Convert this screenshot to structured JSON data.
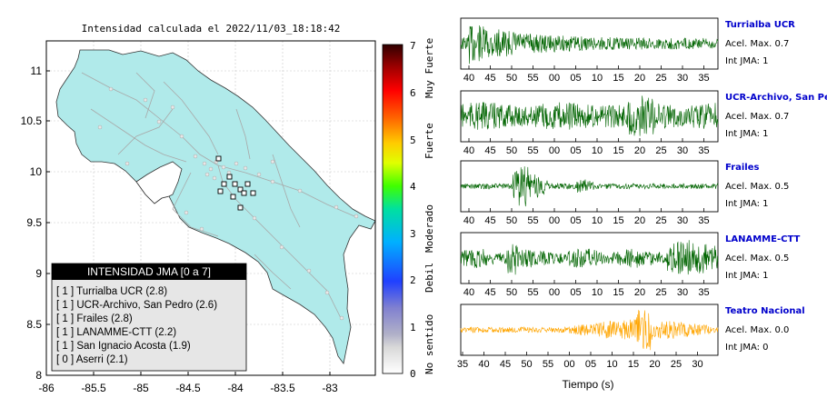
{
  "map": {
    "title": "Intensidad calculada el 2022/11/03_18:18:42",
    "x_ticks": [
      "-86",
      "-85.5",
      "-85",
      "-84.5",
      "-84",
      "-83.5",
      "-83"
    ],
    "y_ticks": [
      "11",
      "10.5",
      "10",
      "9.5",
      "9",
      "8.5",
      "8"
    ],
    "legend": {
      "header": "INTENSIDAD JMA [0 a 7]",
      "items": [
        "[ 1 ]  Turrialba UCR (2.8)",
        "[ 1 ]  UCR-Archivo, San Pedro (2.6)",
        "[ 1 ]  Frailes (2.8)",
        "[ 1 ]  LANAMME-CTT (2.2)",
        "[ 1 ]  San Ignacio Acosta (1.9)",
        "[ 0 ]  Aserri (2.1)"
      ]
    }
  },
  "colorbar": {
    "ticks": [
      "0",
      "1",
      "2",
      "3",
      "4",
      "5",
      "6",
      "7"
    ],
    "labels": [
      "No sentido",
      "Debil",
      "Moderado",
      "Fuerte",
      "Muy Fuerte"
    ]
  },
  "traces": [
    {
      "station": "Turrialba UCR",
      "acel": "Acel. Max. 0.7",
      "int": "Int JMA: 1",
      "color": "#006400",
      "ticks": [
        "40",
        "45",
        "50",
        "55",
        "00",
        "05",
        "10",
        "15",
        "20",
        "25",
        "30",
        "35"
      ],
      "envelope": "early"
    },
    {
      "station": "UCR-Archivo, San Pedro",
      "acel": "Acel. Max. 0.7",
      "int": "Int JMA: 1",
      "color": "#006400",
      "ticks": [
        "40",
        "45",
        "50",
        "55",
        "00",
        "05",
        "10",
        "15",
        "20",
        "25",
        "30",
        "35"
      ],
      "envelope": "flat"
    },
    {
      "station": "Frailes",
      "acel": "Acel. Max. 0.5",
      "int": "Int JMA: 1",
      "color": "#006400",
      "ticks": [
        "40",
        "45",
        "50",
        "55",
        "00",
        "05",
        "10",
        "15",
        "20",
        "25",
        "30",
        "35"
      ],
      "envelope": "spike"
    },
    {
      "station": "LANAMME-CTT",
      "acel": "Acel. Max. 0.5",
      "int": "Int JMA: 1",
      "color": "#006400",
      "ticks": [
        "40",
        "45",
        "50",
        "55",
        "00",
        "05",
        "10",
        "15",
        "20",
        "25",
        "30",
        "35"
      ],
      "envelope": "mixed"
    },
    {
      "station": "Teatro Nacional",
      "acel": "Acel. Max. 0.0",
      "int": "Int JMA: 0",
      "color": "#ffa500",
      "ticks": [
        "35",
        "40",
        "45",
        "50",
        "55",
        "00",
        "05",
        "10",
        "15",
        "20",
        "25",
        "30"
      ],
      "envelope": "late"
    }
  ],
  "time_label": "Tiempo (s)"
}
